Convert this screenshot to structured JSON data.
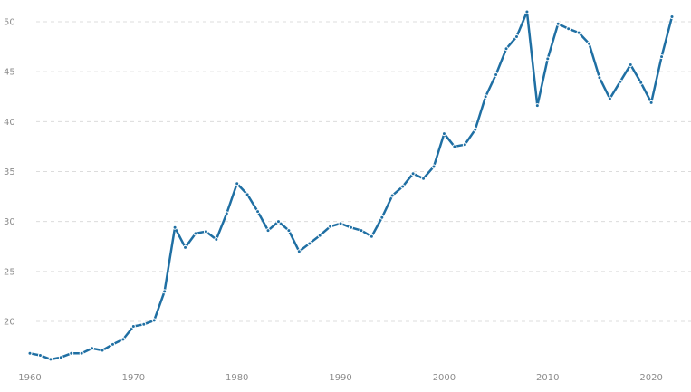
{
  "chart_data": {
    "type": "line",
    "title": "",
    "xlabel": "",
    "ylabel": "",
    "xlim": [
      1960,
      2022
    ],
    "ylim": [
      16,
      52
    ],
    "grid": true,
    "legend": "none",
    "x_ticks": [
      "1960",
      "1970",
      "1980",
      "1990",
      "2000",
      "2010",
      "2020"
    ],
    "y_ticks": [
      "20",
      "25",
      "30",
      "35",
      "40",
      "45",
      "50"
    ],
    "colors": {
      "line": "#1f6fa3",
      "grid": "#dcdcdc",
      "ticks": "#8c8c8c"
    },
    "series": [
      {
        "x": [
          1960,
          1961,
          1962,
          1963,
          1964,
          1965,
          1966,
          1967,
          1968,
          1969,
          1970,
          1971,
          1972,
          1973,
          1974,
          1975,
          1976,
          1977,
          1978,
          1979,
          1980,
          1981,
          1982,
          1983,
          1984,
          1985,
          1986,
          1987,
          1988,
          1989,
          1990,
          1991,
          1992,
          1993,
          1994,
          1995,
          1996,
          1997,
          1998,
          1999,
          2000,
          2001,
          2002,
          2003,
          2004,
          2005,
          2006,
          2007,
          2008,
          2009,
          2010,
          2011,
          2012,
          2013,
          2014,
          2015,
          2016,
          2017,
          2018,
          2019,
          2020,
          2021,
          2022
        ],
        "values": [
          16.8,
          16.6,
          16.2,
          16.4,
          16.8,
          16.8,
          17.3,
          17.1,
          17.7,
          18.2,
          19.5,
          19.7,
          20.1,
          23.0,
          29.4,
          27.4,
          28.8,
          29.0,
          28.2,
          30.8,
          33.8,
          32.7,
          31.0,
          29.1,
          30.0,
          29.1,
          27.0,
          27.8,
          28.6,
          29.5,
          29.8,
          29.4,
          29.1,
          28.5,
          30.4,
          32.6,
          33.5,
          34.8,
          34.3,
          35.5,
          38.8,
          37.5,
          37.7,
          39.2,
          42.5,
          44.7,
          47.3,
          48.5,
          51.0,
          41.6,
          46.3,
          49.8,
          49.3,
          48.9,
          47.8,
          44.4,
          42.3,
          44.0,
          45.7,
          43.9,
          41.9,
          46.5,
          50.5
        ]
      }
    ]
  }
}
